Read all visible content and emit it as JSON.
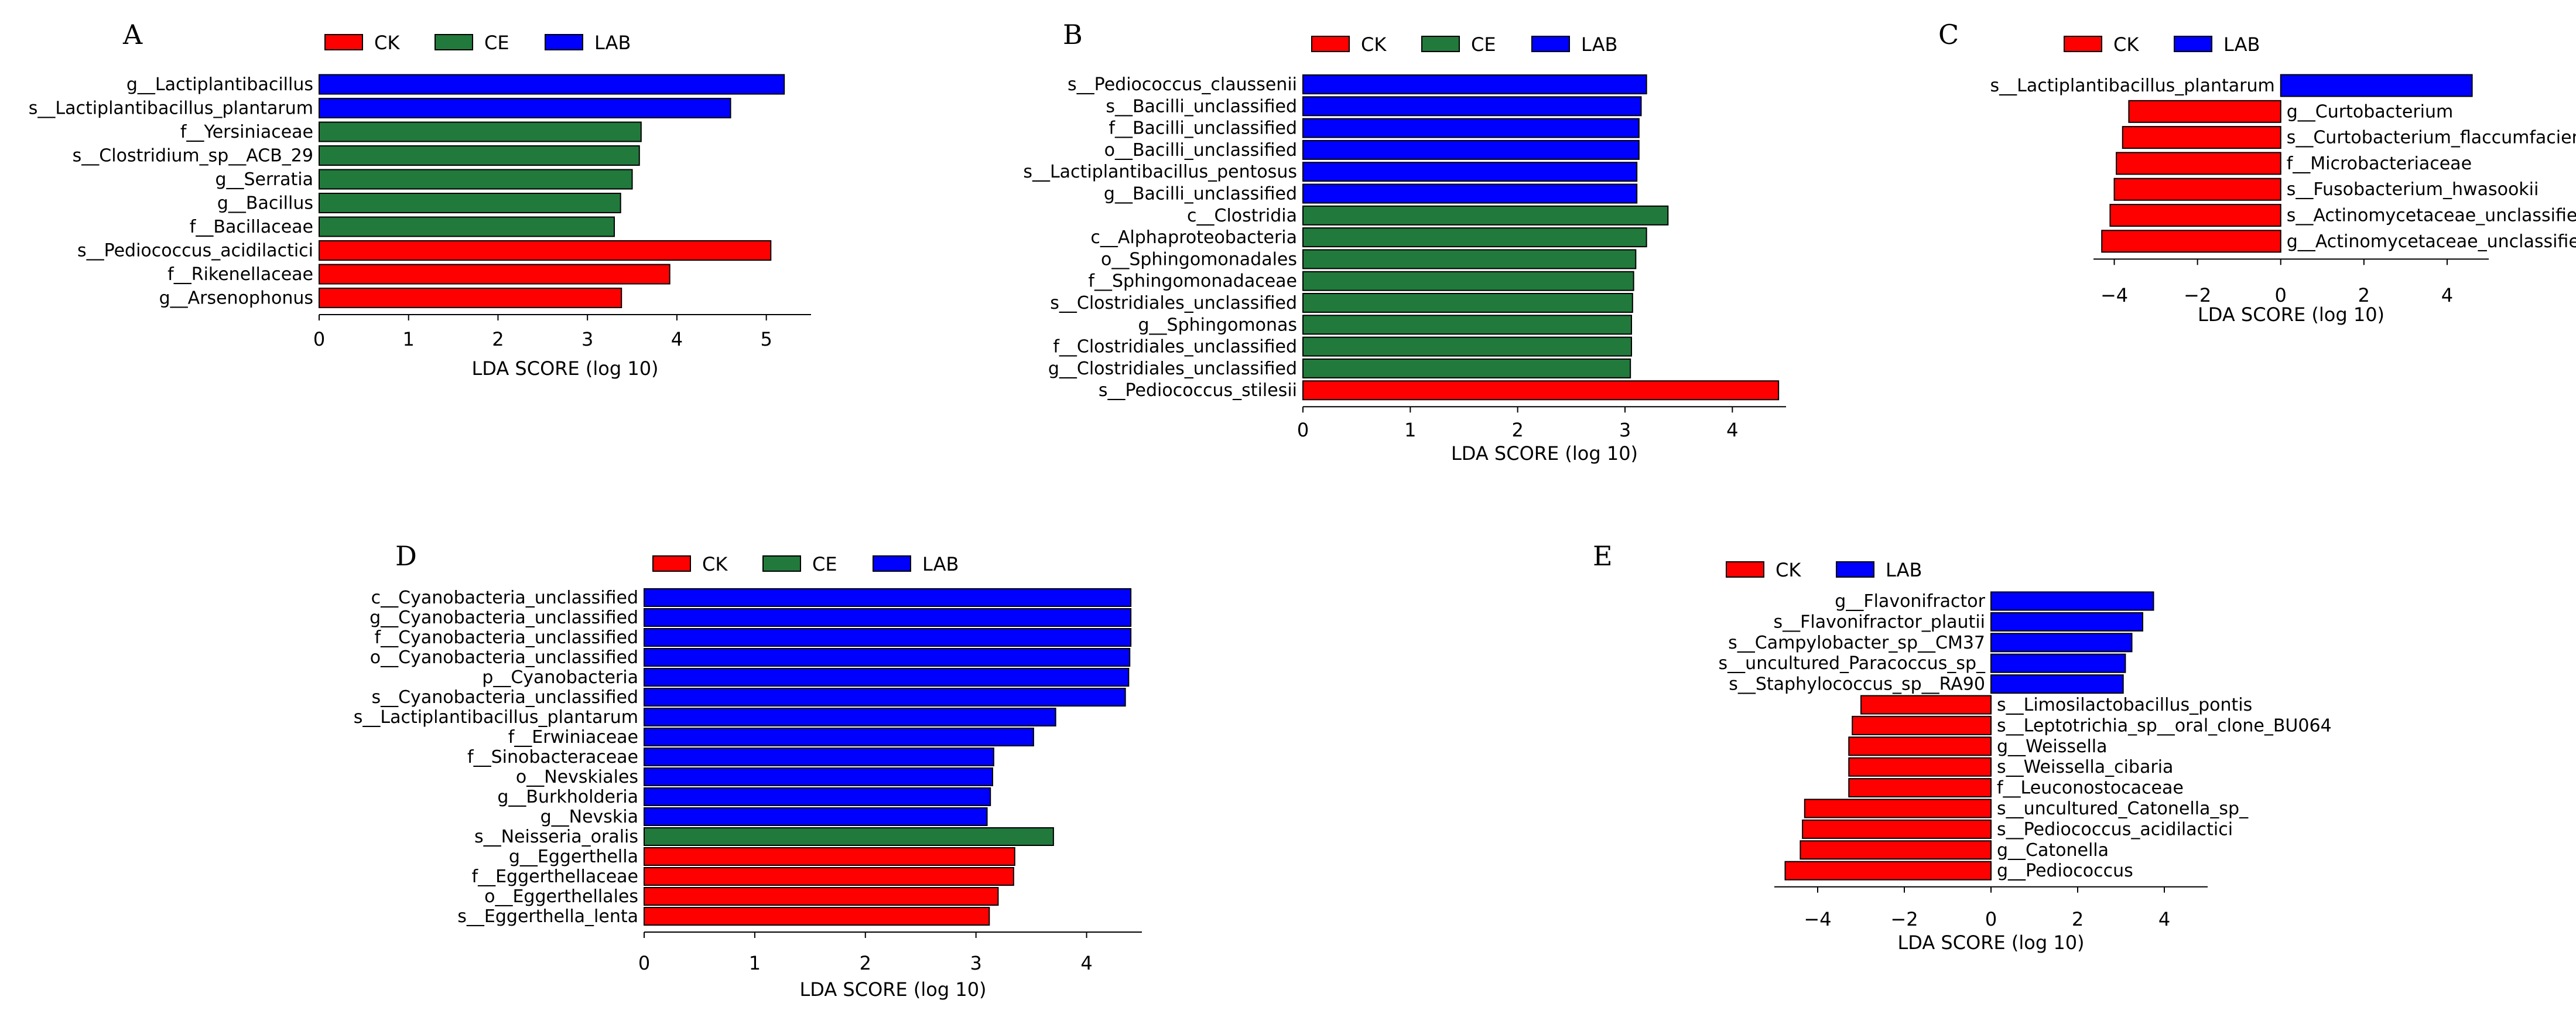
{
  "colors": {
    "CK": "#ff0000",
    "CE": "#217a3c",
    "LAB": "#0000ff"
  },
  "chart_data": [
    {
      "type": "bar",
      "orientation": "horizontal",
      "panel": "A",
      "legend": [
        "CK",
        "CE",
        "LAB"
      ],
      "xlabel": "LDA SCORE (log 10)",
      "xlim": [
        0,
        5.5
      ],
      "xticks": [
        0,
        1,
        2,
        3,
        4,
        5
      ],
      "bars": [
        {
          "label": "g__Lactiplantibacillus",
          "value": 5.2,
          "group": "LAB"
        },
        {
          "label": "s__Lactiplantibacillus_plantarum",
          "value": 4.6,
          "group": "LAB"
        },
        {
          "label": "f__Yersiniaceae",
          "value": 3.6,
          "group": "CE"
        },
        {
          "label": "s__Clostridium_sp__ACB_29",
          "value": 3.58,
          "group": "CE"
        },
        {
          "label": "g__Serratia",
          "value": 3.5,
          "group": "CE"
        },
        {
          "label": "g__Bacillus",
          "value": 3.37,
          "group": "CE"
        },
        {
          "label": "f__Bacillaceae",
          "value": 3.3,
          "group": "CE"
        },
        {
          "label": "s__Pediococcus_acidilactici",
          "value": 5.05,
          "group": "CK"
        },
        {
          "label": "f__Rikenellaceae",
          "value": 3.92,
          "group": "CK"
        },
        {
          "label": "g__Arsenophonus",
          "value": 3.38,
          "group": "CK"
        }
      ]
    },
    {
      "type": "bar",
      "orientation": "horizontal",
      "panel": "B",
      "legend": [
        "CK",
        "CE",
        "LAB"
      ],
      "xlabel": "LDA SCORE (log 10)",
      "xlim": [
        0,
        4.5
      ],
      "xticks": [
        0,
        1,
        2,
        3,
        4
      ],
      "bars": [
        {
          "label": "s__Pediococcus_claussenii",
          "value": 3.2,
          "group": "LAB"
        },
        {
          "label": "s__Bacilli_unclassified",
          "value": 3.15,
          "group": "LAB"
        },
        {
          "label": "f__Bacilli_unclassified",
          "value": 3.13,
          "group": "LAB"
        },
        {
          "label": "o__Bacilli_unclassified",
          "value": 3.13,
          "group": "LAB"
        },
        {
          "label": "s__Lactiplantibacillus_pentosus",
          "value": 3.11,
          "group": "LAB"
        },
        {
          "label": "g__Bacilli_unclassified",
          "value": 3.11,
          "group": "LAB"
        },
        {
          "label": "c__Clostridia",
          "value": 3.4,
          "group": "CE"
        },
        {
          "label": "c__Alphaproteobacteria",
          "value": 3.2,
          "group": "CE"
        },
        {
          "label": "o__Sphingomonadales",
          "value": 3.1,
          "group": "CE"
        },
        {
          "label": "f__Sphingomonadaceae",
          "value": 3.08,
          "group": "CE"
        },
        {
          "label": "s__Clostridiales_unclassified",
          "value": 3.07,
          "group": "CE"
        },
        {
          "label": "g__Sphingomonas",
          "value": 3.06,
          "group": "CE"
        },
        {
          "label": "f__Clostridiales_unclassified",
          "value": 3.06,
          "group": "CE"
        },
        {
          "label": "g__Clostridiales_unclassified",
          "value": 3.05,
          "group": "CE"
        },
        {
          "label": "s__Pediococcus_stilesii",
          "value": 4.43,
          "group": "CK"
        }
      ]
    },
    {
      "type": "bar",
      "orientation": "horizontal",
      "panel": "C",
      "legend": [
        "CK",
        "LAB"
      ],
      "xlabel": "LDA SCORE (log 10)",
      "xlim": [
        -4.5,
        5
      ],
      "xticks": [
        -4,
        -2,
        0,
        2,
        4
      ],
      "bars": [
        {
          "label": "s__Lactiplantibacillus_plantarum",
          "value": 4.6,
          "group": "LAB"
        },
        {
          "label": "g__Curtobacterium",
          "value": -3.65,
          "group": "CK"
        },
        {
          "label": "s__Curtobacterium_flaccumfaciens",
          "value": -3.8,
          "group": "CK"
        },
        {
          "label": "f__Microbacteriaceae",
          "value": -3.95,
          "group": "CK"
        },
        {
          "label": "s__Fusobacterium_hwasookii",
          "value": -4.0,
          "group": "CK"
        },
        {
          "label": "s__Actinomycetaceae_unclassified",
          "value": -4.1,
          "group": "CK"
        },
        {
          "label": "g__Actinomycetaceae_unclassified",
          "value": -4.3,
          "group": "CK"
        }
      ]
    },
    {
      "type": "bar",
      "orientation": "horizontal",
      "panel": "D",
      "legend": [
        "CK",
        "CE",
        "LAB"
      ],
      "xlabel": "LDA SCORE (log 10)",
      "xlim": [
        0,
        4.5
      ],
      "xticks": [
        0,
        1,
        2,
        3,
        4
      ],
      "bars": [
        {
          "label": "c__Cyanobacteria_unclassified",
          "value": 4.4,
          "group": "LAB"
        },
        {
          "label": "g__Cyanobacteria_unclassified",
          "value": 4.4,
          "group": "LAB"
        },
        {
          "label": "f__Cyanobacteria_unclassified",
          "value": 4.4,
          "group": "LAB"
        },
        {
          "label": "o__Cyanobacteria_unclassified",
          "value": 4.39,
          "group": "LAB"
        },
        {
          "label": "p__Cyanobacteria",
          "value": 4.38,
          "group": "LAB"
        },
        {
          "label": "s__Cyanobacteria_unclassified",
          "value": 4.35,
          "group": "LAB"
        },
        {
          "label": "s__Lactiplantibacillus_plantarum",
          "value": 3.72,
          "group": "LAB"
        },
        {
          "label": "f__Erwiniaceae",
          "value": 3.52,
          "group": "LAB"
        },
        {
          "label": "f__Sinobacteraceae",
          "value": 3.16,
          "group": "LAB"
        },
        {
          "label": "o__Nevskiales",
          "value": 3.15,
          "group": "LAB"
        },
        {
          "label": "g__Burkholderia",
          "value": 3.13,
          "group": "LAB"
        },
        {
          "label": "g__Nevskia",
          "value": 3.1,
          "group": "LAB"
        },
        {
          "label": "s__Neisseria_oralis",
          "value": 3.7,
          "group": "CE"
        },
        {
          "label": "g__Eggerthella",
          "value": 3.35,
          "group": "CK"
        },
        {
          "label": "f__Eggerthellaceae",
          "value": 3.34,
          "group": "CK"
        },
        {
          "label": "o__Eggerthellales",
          "value": 3.2,
          "group": "CK"
        },
        {
          "label": "s__Eggerthella_lenta",
          "value": 3.12,
          "group": "CK"
        }
      ]
    },
    {
      "type": "bar",
      "orientation": "horizontal",
      "panel": "E",
      "legend": [
        "CK",
        "LAB"
      ],
      "xlabel": "LDA SCORE (log 10)",
      "xlim": [
        -5,
        5
      ],
      "xticks": [
        -4,
        -2,
        0,
        2,
        4
      ],
      "bars": [
        {
          "label": "g__Flavonifractor",
          "value": 3.75,
          "group": "LAB"
        },
        {
          "label": "s__Flavonifractor_plautii",
          "value": 3.5,
          "group": "LAB"
        },
        {
          "label": "s__Campylobacter_sp__CM37",
          "value": 3.25,
          "group": "LAB"
        },
        {
          "label": "s__uncultured_Paracoccus_sp_",
          "value": 3.1,
          "group": "LAB"
        },
        {
          "label": "s__Staphylococcus_sp__RA90",
          "value": 3.05,
          "group": "LAB"
        },
        {
          "label": "s__Limosilactobacillus_pontis",
          "value": -3.0,
          "group": "CK"
        },
        {
          "label": "s__Leptotrichia_sp__oral_clone_BU064",
          "value": -3.2,
          "group": "CK"
        },
        {
          "label": "g__Weissella",
          "value": -3.28,
          "group": "CK"
        },
        {
          "label": "s__Weissella_cibaria",
          "value": -3.28,
          "group": "CK"
        },
        {
          "label": "f__Leuconostocaceae",
          "value": -3.28,
          "group": "CK"
        },
        {
          "label": "s__uncultured_Catonella_sp_",
          "value": -4.3,
          "group": "CK"
        },
        {
          "label": "s__Pediococcus_acidilactici",
          "value": -4.35,
          "group": "CK"
        },
        {
          "label": "g__Catonella",
          "value": -4.4,
          "group": "CK"
        },
        {
          "label": "g__Pediococcus",
          "value": -4.75,
          "group": "CK"
        }
      ]
    }
  ]
}
